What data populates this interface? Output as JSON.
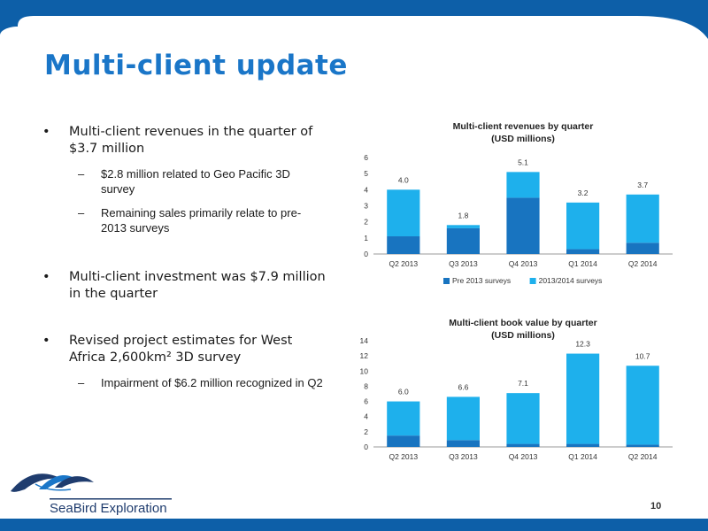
{
  "title": "Multi-client update",
  "bullets": [
    {
      "text": "Multi-client revenues in the quarter of $3.7 million",
      "sub": [
        "$2.8 million related to Geo Pacific 3D survey",
        "Remaining sales primarily relate to pre-2013 surveys"
      ]
    },
    {
      "text": "Multi-client investment was $7.9 million in the quarter",
      "sub": []
    },
    {
      "text": "Revised project estimates for West Africa 2,600km² 3D survey",
      "sub": [
        "Impairment of $6.2 million recognized in Q2"
      ]
    }
  ],
  "bullet_symbol": "•",
  "dash_symbol": "–",
  "chart_data": [
    {
      "type": "bar",
      "stacked": true,
      "title": "Multi-client revenues by quarter",
      "subtitle": "(USD millions)",
      "categories": [
        "Q2 2013",
        "Q3 2013",
        "Q4 2013",
        "Q1 2014",
        "Q2 2014"
      ],
      "series": [
        {
          "name": "Pre 2013 surveys",
          "color": "#1874c0",
          "values": [
            1.1,
            1.6,
            3.5,
            0.3,
            0.7
          ]
        },
        {
          "name": "2013/2014 surveys",
          "color": "#1eb0ec",
          "values": [
            2.9,
            0.2,
            1.6,
            2.9,
            3.0
          ]
        }
      ],
      "totals": [
        "4.0",
        "1.8",
        "5.1",
        "3.2",
        "3.7"
      ],
      "ylim": [
        0,
        6
      ],
      "yticks": [
        "0",
        "1",
        "2",
        "3",
        "4",
        "5",
        "6"
      ],
      "legend": "bottom"
    },
    {
      "type": "bar",
      "stacked": true,
      "title": "Multi-client book value  by quarter",
      "subtitle": "(USD millions)",
      "categories": [
        "Q2 2013",
        "Q3 2013",
        "Q4 2013",
        "Q1 2014",
        "Q2 2014"
      ],
      "series": [
        {
          "color": "#1874c0",
          "values": [
            1.5,
            0.9,
            0.4,
            0.4,
            0.3
          ]
        },
        {
          "color": "#1eb0ec",
          "values": [
            4.5,
            5.7,
            6.7,
            11.9,
            10.4
          ]
        }
      ],
      "totals": [
        "6.0",
        "6.6",
        "7.1",
        "12.3",
        "10.7"
      ],
      "ylim": [
        0,
        14
      ],
      "yticks": [
        "0",
        "2",
        "4",
        "6",
        "8",
        "10",
        "12",
        "14"
      ]
    }
  ],
  "logo_text": "SeaBird Exploration",
  "page_number": "10",
  "colors": {
    "frame": "#0d5fa8",
    "title": "#1a76c8"
  }
}
